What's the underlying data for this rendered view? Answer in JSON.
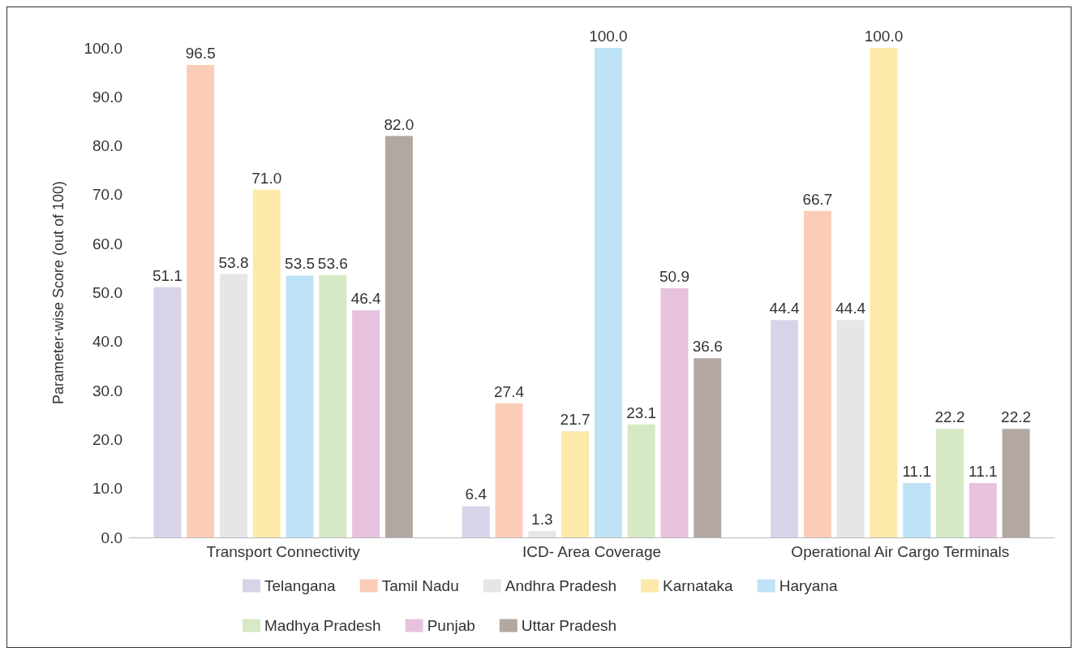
{
  "chart_data": {
    "type": "bar",
    "ylabel": "Parameter-wise Score (out of 100)",
    "categories": [
      "Transport Connectivity",
      "ICD- Area Coverage",
      "Operational Air Cargo Terminals"
    ],
    "series": [
      {
        "name": "Telangana",
        "color": "#d9d3ea",
        "values": [
          51.1,
          6.4,
          44.4
        ],
        "value_labels": [
          "51.1",
          "6.4",
          "44.4"
        ]
      },
      {
        "name": "Tamil Nadu",
        "color": "#fbcdb8",
        "values": [
          96.5,
          27.4,
          66.7
        ],
        "value_labels": [
          "96.5",
          "27.4",
          "66.7"
        ]
      },
      {
        "name": "Andhra Pradesh",
        "color": "#e5e6e8",
        "values": [
          53.8,
          1.3,
          44.4
        ],
        "value_labels": [
          "53.8",
          "1.3",
          "44.4"
        ]
      },
      {
        "name": "Karnataka",
        "color": "#fde9aa",
        "values": [
          71.0,
          21.7,
          100
        ],
        "value_labels": [
          "71.0",
          "21.7",
          "100.0"
        ]
      },
      {
        "name": "Haryana",
        "color": "#bee3f6",
        "values": [
          53.5,
          100,
          11.1
        ],
        "value_labels": [
          "53.5",
          "100.0",
          "11.1"
        ]
      },
      {
        "name": "Madhya Pradesh",
        "color": "#d6e9c5",
        "values": [
          53.6,
          23.1,
          22.2
        ],
        "value_labels": [
          "53.6",
          "23.1",
          "22.2"
        ]
      },
      {
        "name": "Punjab",
        "color": "#e6c2de",
        "values": [
          46.4,
          50.9,
          11.1
        ],
        "value_labels": [
          "46.4",
          "50.9",
          "11.1"
        ]
      },
      {
        "name": "Uttar Pradesh",
        "color": "#b3a7a1",
        "values": [
          82.0,
          36.6,
          22.2
        ],
        "value_labels": [
          "82.0",
          "36.6",
          "22.2"
        ]
      }
    ],
    "ylim": [
      0,
      100
    ],
    "yticks": [
      {
        "value": 0,
        "label": "0.0"
      },
      {
        "value": 10,
        "label": "10.0"
      },
      {
        "value": 20,
        "label": "20.0"
      },
      {
        "value": 30,
        "label": "30.0"
      },
      {
        "value": 40,
        "label": "40.0"
      },
      {
        "value": 50,
        "label": "50.0"
      },
      {
        "value": 60,
        "label": "60.0"
      },
      {
        "value": 70,
        "label": "70.0"
      },
      {
        "value": 80,
        "label": "80.0"
      },
      {
        "value": 90,
        "label": "90.0"
      },
      {
        "value": 100,
        "label": "100.0"
      }
    ],
    "grid": false,
    "legend": "bottom"
  }
}
